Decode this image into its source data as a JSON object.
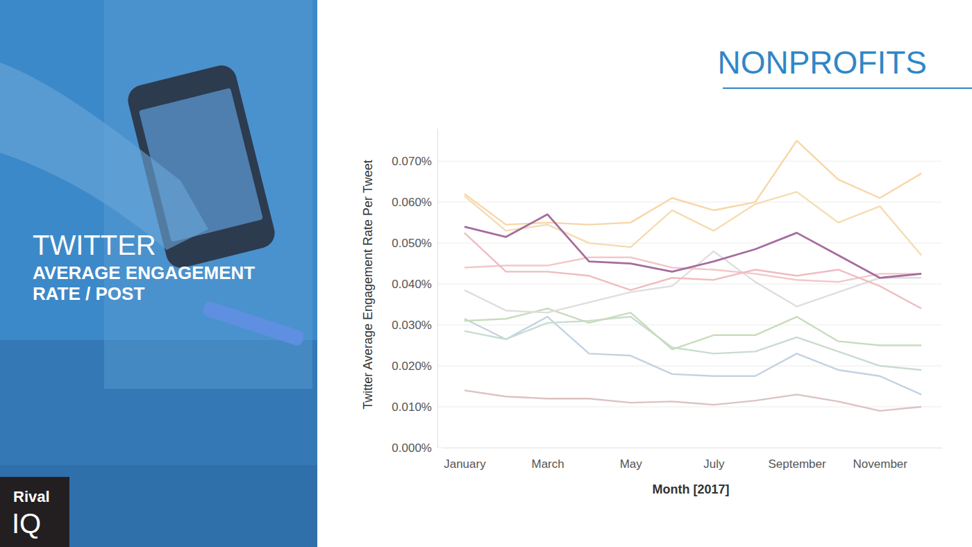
{
  "panel": {
    "title": "TWITTER",
    "subtitle_lines": [
      "AVERAGE ENGAGEMENT",
      "RATE / POST"
    ],
    "logo": [
      "Rival",
      "IQ"
    ]
  },
  "chart_data": {
    "type": "line",
    "title": "NONPROFITS",
    "x_label": "Month [2017]",
    "y_label": "Twitter Average Engagement Rate Per Tweet",
    "categories": [
      "January",
      null,
      "March",
      null,
      "May",
      null,
      "July",
      null,
      "September",
      null,
      "November",
      null
    ],
    "ylim": [
      0,
      0.078
    ],
    "yticks": [
      {
        "value": 0,
        "label": "0.000%"
      },
      {
        "value": 0.01,
        "label": "0.010%"
      },
      {
        "value": 0.02,
        "label": "0.020%"
      },
      {
        "value": 0.03,
        "label": "0.030%"
      },
      {
        "value": 0.04,
        "label": "0.040%"
      },
      {
        "value": 0.05,
        "label": "0.050%"
      },
      {
        "value": 0.06,
        "label": "0.060%"
      },
      {
        "value": 0.07,
        "label": "0.070%"
      }
    ],
    "grid": true,
    "series": [
      {
        "color": "#dcc2c2",
        "values": [
          0.014,
          0.0125,
          0.012,
          0.012,
          0.011,
          0.0113,
          0.0105,
          0.0115,
          0.013,
          0.0113,
          0.009,
          0.01
        ]
      },
      {
        "color": "#c3d2e2",
        "values": [
          0.0315,
          0.0265,
          0.032,
          0.023,
          0.0225,
          0.018,
          0.0175,
          0.0175,
          0.023,
          0.019,
          0.0175,
          0.013
        ]
      },
      {
        "color": "#c9dccf",
        "values": [
          0.0285,
          0.0265,
          0.0305,
          0.031,
          0.032,
          0.0245,
          0.023,
          0.0235,
          0.027,
          0.0235,
          0.02,
          0.019
        ]
      },
      {
        "color": "#c8dcbc",
        "values": [
          0.031,
          0.0315,
          0.034,
          0.0305,
          0.033,
          0.024,
          0.0275,
          0.0275,
          0.032,
          0.026,
          0.025,
          0.025
        ]
      },
      {
        "color": "#dedede",
        "values": [
          0.0385,
          0.0335,
          0.033,
          0.0355,
          0.038,
          0.0395,
          0.048,
          0.0405,
          0.0345,
          0.038,
          0.0415,
          0.0415
        ]
      },
      {
        "color": "#f3c7c9",
        "values": [
          0.044,
          0.0445,
          0.0445,
          0.0465,
          0.0465,
          0.044,
          0.0435,
          0.0425,
          0.041,
          0.0405,
          0.0425,
          0.0425
        ]
      },
      {
        "color": "#efbcc2",
        "values": [
          0.0525,
          0.043,
          0.043,
          0.042,
          0.0385,
          0.0415,
          0.041,
          0.0435,
          0.042,
          0.0435,
          0.0395,
          0.034
        ]
      },
      {
        "color": "#f5dcb0",
        "values": [
          0.0615,
          0.053,
          0.0545,
          0.05,
          0.049,
          0.058,
          0.053,
          0.0595,
          0.0625,
          0.055,
          0.059,
          0.047
        ]
      },
      {
        "color": "#f7d6a6",
        "values": [
          0.062,
          0.0545,
          0.055,
          0.0545,
          0.055,
          0.061,
          0.058,
          0.06,
          0.075,
          0.0655,
          0.061,
          0.067
        ]
      },
      {
        "color": "#a56c9e",
        "values": [
          0.054,
          0.0515,
          0.057,
          0.0455,
          0.045,
          0.043,
          0.0455,
          0.0485,
          0.0525,
          0.047,
          0.0415,
          0.0425
        ]
      }
    ]
  }
}
